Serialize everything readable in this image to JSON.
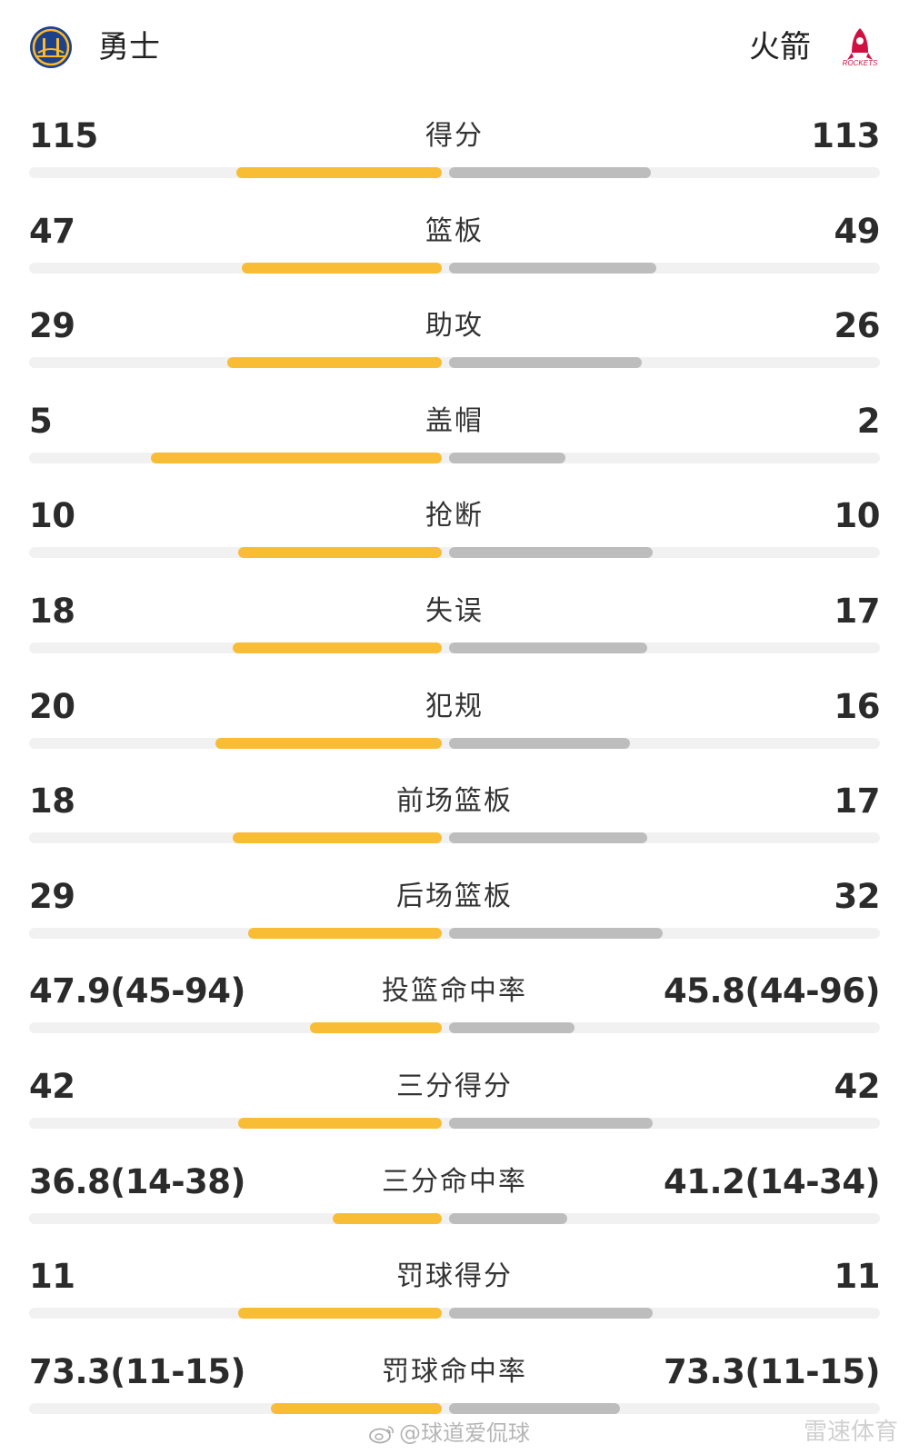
{
  "header": {
    "home_team": "勇士",
    "away_team": "火箭",
    "home_logo_icon": "warriors-logo-icon",
    "away_logo_icon": "rockets-logo-icon",
    "away_logo_text": "ROCKETS"
  },
  "colors": {
    "home_bar": "#f8bd35",
    "away_bar": "#bdbdbd",
    "track": "#f1f1f1"
  },
  "stats": [
    {
      "label": "得分",
      "home": "115",
      "away": "113",
      "home_share": 0.504,
      "away_share": 0.496
    },
    {
      "label": "篮板",
      "home": "47",
      "away": "49",
      "home_share": 0.49,
      "away_share": 0.51
    },
    {
      "label": "助攻",
      "home": "29",
      "away": "26",
      "home_share": 0.527,
      "away_share": 0.473
    },
    {
      "label": "盖帽",
      "home": "5",
      "away": "2",
      "home_share": 0.714,
      "away_share": 0.286
    },
    {
      "label": "抢断",
      "home": "10",
      "away": "10",
      "home_share": 0.5,
      "away_share": 0.5
    },
    {
      "label": "失误",
      "home": "18",
      "away": "17",
      "home_share": 0.514,
      "away_share": 0.486
    },
    {
      "label": "犯规",
      "home": "20",
      "away": "16",
      "home_share": 0.556,
      "away_share": 0.444
    },
    {
      "label": "前场篮板",
      "home": "18",
      "away": "17",
      "home_share": 0.514,
      "away_share": 0.486
    },
    {
      "label": "后场篮板",
      "home": "29",
      "away": "32",
      "home_share": 0.475,
      "away_share": 0.525
    },
    {
      "label": "投篮命中率",
      "home": "47.9(45-94)",
      "away": "45.8(44-96)",
      "home_share": 0.323,
      "away_share": 0.309
    },
    {
      "label": "三分得分",
      "home": "42",
      "away": "42",
      "home_share": 0.5,
      "away_share": 0.5
    },
    {
      "label": "三分命中率",
      "home": "36.8(14-38)",
      "away": "41.2(14-34)",
      "home_share": 0.268,
      "away_share": 0.29
    },
    {
      "label": "罚球得分",
      "home": "11",
      "away": "11",
      "home_share": 0.5,
      "away_share": 0.5
    },
    {
      "label": "罚球命中率",
      "home": "73.3(11-15)",
      "away": "73.3(11-15)",
      "home_share": 0.42,
      "away_share": 0.42
    }
  ],
  "watermark": {
    "text": "@球道爱侃球",
    "icon": "weibo-icon"
  },
  "corner_mark": {
    "text": "雷速体育"
  }
}
